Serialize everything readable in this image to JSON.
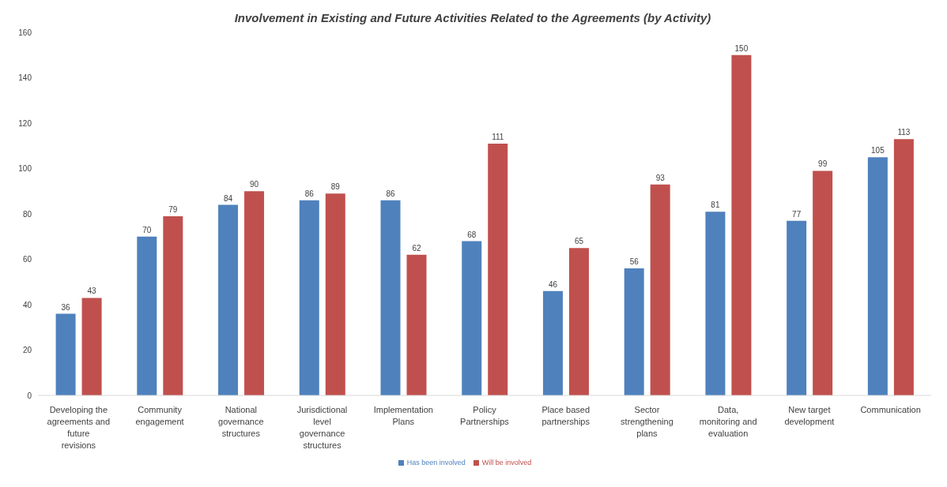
{
  "chart_data": {
    "type": "bar",
    "title": "Involvement in Existing and Future Activities Related to the Agreements (by Activity)",
    "categories": [
      "Developing the agreements and future revisions",
      "Community engagement",
      "National governance structures",
      "Jurisdictional level governance structures",
      "Implementation Plans",
      "Policy Partnerships",
      "Place based partnerships",
      "Sector strengthening plans",
      "Data, monitoring and evaluation",
      "New target development",
      "Communication"
    ],
    "series": [
      {
        "name": "Has been involved",
        "color": "#4f81bd",
        "values": [
          36,
          70,
          84,
          86,
          86,
          68,
          46,
          56,
          81,
          77,
          105
        ]
      },
      {
        "name": "Will be involved",
        "color": "#c0504d",
        "values": [
          43,
          79,
          90,
          89,
          62,
          111,
          65,
          93,
          150,
          99,
          113
        ]
      }
    ],
    "ylim": [
      0,
      160
    ],
    "yticks": [
      0,
      20,
      40,
      60,
      80,
      100,
      120,
      140,
      160
    ],
    "grid": false,
    "legend": "bottom",
    "data_labels": true
  }
}
